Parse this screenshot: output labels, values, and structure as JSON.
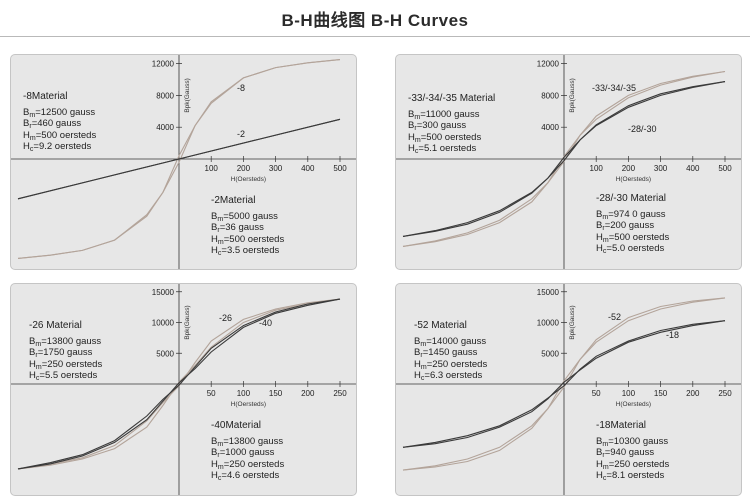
{
  "page": {
    "title": "B-H曲线图 B-H Curves"
  },
  "chart_data": [
    {
      "type": "line",
      "x_label": "H(Oersteds)",
      "y_label": "Bpk(Gauss)",
      "xlim": [
        -500,
        500
      ],
      "ylim": [
        -12500,
        12500
      ],
      "x_ticks": [
        100,
        200,
        300,
        400,
        500
      ],
      "y_ticks": [
        4000,
        8000,
        12000
      ],
      "series": [
        {
          "name": "-8",
          "color": "#b3a49a",
          "points": [
            [
              -500,
              -12500
            ],
            [
              -400,
              -12100
            ],
            [
              -300,
              -11500
            ],
            [
              -200,
              -10200
            ],
            [
              -100,
              -7000
            ],
            [
              -50,
              -4200
            ],
            [
              0,
              -400
            ],
            [
              50,
              4200
            ],
            [
              100,
              7200
            ],
            [
              200,
              10200
            ],
            [
              300,
              11500
            ],
            [
              400,
              12100
            ],
            [
              500,
              12500
            ]
          ]
        },
        {
          "name": "-2",
          "color": "#3a3a3a",
          "points": [
            [
              -500,
              -5000
            ],
            [
              -250,
              -2500
            ],
            [
              0,
              0
            ],
            [
              250,
              2500
            ],
            [
              500,
              5000
            ]
          ]
        }
      ],
      "materials": [
        {
          "title": "-8Material",
          "bm": "12500",
          "br": "460",
          "hm": "500",
          "hc": "9.2"
        },
        {
          "title": "-2Material",
          "bm": "5000",
          "br": "36",
          "hm": "500",
          "hc": "3.5"
        }
      ]
    },
    {
      "type": "line",
      "x_label": "H(Oersteds)",
      "y_label": "Bpk(Gauss)",
      "xlim": [
        -500,
        500
      ],
      "ylim": [
        -12500,
        12500
      ],
      "x_ticks": [
        100,
        200,
        300,
        400,
        500
      ],
      "y_ticks": [
        4000,
        8000,
        12000
      ],
      "series": [
        {
          "name": "-33/-34/-35",
          "color": "#b3a49a",
          "points": [
            [
              -500,
              -11000
            ],
            [
              -400,
              -10300
            ],
            [
              -300,
              -9300
            ],
            [
              -200,
              -7700
            ],
            [
              -100,
              -5000
            ],
            [
              -50,
              -3000
            ],
            [
              0,
              -300
            ],
            [
              50,
              3000
            ],
            [
              100,
              5400
            ],
            [
              200,
              8000
            ],
            [
              300,
              9500
            ],
            [
              400,
              10400
            ],
            [
              500,
              11000
            ]
          ]
        },
        {
          "name": "-28/-30",
          "color": "#3a3a3a",
          "points": [
            [
              -500,
              -9740
            ],
            [
              -400,
              -9000
            ],
            [
              -300,
              -8000
            ],
            [
              -200,
              -6500
            ],
            [
              -100,
              -4200
            ],
            [
              -50,
              -2400
            ],
            [
              0,
              -200
            ],
            [
              50,
              2400
            ],
            [
              100,
              4300
            ],
            [
              200,
              6700
            ],
            [
              300,
              8200
            ],
            [
              400,
              9100
            ],
            [
              500,
              9740
            ]
          ]
        }
      ],
      "materials": [
        {
          "title": "-33/-34/-35 Material",
          "bm": "11000",
          "br": "300",
          "hm": "500",
          "hc": "5.1"
        },
        {
          "title": "-28/-30 Material",
          "bm": "974 0",
          "br": "200",
          "hm": "500",
          "hc": "5.0"
        }
      ]
    },
    {
      "type": "line",
      "x_label": "H(Oersteds)",
      "y_label": "Bpk(Gauss)",
      "xlim": [
        -250,
        250
      ],
      "ylim": [
        -15000,
        15000
      ],
      "x_ticks": [
        50,
        100,
        150,
        200,
        250
      ],
      "y_ticks": [
        5000,
        10000,
        15000
      ],
      "series": [
        {
          "name": "-26",
          "color": "#b3a49a",
          "points": [
            [
              -250,
              -13800
            ],
            [
              -200,
              -13000
            ],
            [
              -150,
              -12000
            ],
            [
              -100,
              -10000
            ],
            [
              -50,
              -6000
            ],
            [
              -25,
              -3000
            ],
            [
              0,
              -300
            ],
            [
              25,
              3500
            ],
            [
              50,
              7000
            ],
            [
              100,
              10500
            ],
            [
              150,
              12200
            ],
            [
              200,
              13200
            ],
            [
              250,
              13800
            ]
          ]
        },
        {
          "name": "-40",
          "color": "#3a3a3a",
          "points": [
            [
              -250,
              -13800
            ],
            [
              -200,
              -12800
            ],
            [
              -150,
              -11500
            ],
            [
              -100,
              -9200
            ],
            [
              -50,
              -5200
            ],
            [
              -25,
              -2500
            ],
            [
              0,
              -200
            ],
            [
              25,
              2800
            ],
            [
              50,
              5800
            ],
            [
              100,
              9500
            ],
            [
              150,
              11700
            ],
            [
              200,
              13000
            ],
            [
              250,
              13800
            ]
          ]
        }
      ],
      "materials": [
        {
          "title": "-26 Material",
          "bm": "13800",
          "br": "1750",
          "hm": "250",
          "hc": "5.5"
        },
        {
          "title": "-40Material",
          "bm": "13800",
          "br": "1000",
          "hm": "250",
          "hc": "4.6"
        }
      ]
    },
    {
      "type": "line",
      "x_label": "H(Oersteds)",
      "y_label": "Bpk(Gauss)",
      "xlim": [
        -250,
        250
      ],
      "ylim": [
        -15000,
        15000
      ],
      "x_ticks": [
        50,
        100,
        150,
        200,
        250
      ],
      "y_ticks": [
        5000,
        10000,
        15000
      ],
      "series": [
        {
          "name": "-52",
          "color": "#b3a49a",
          "points": [
            [
              -250,
              -14000
            ],
            [
              -200,
              -13300
            ],
            [
              -150,
              -12200
            ],
            [
              -100,
              -10300
            ],
            [
              -50,
              -6800
            ],
            [
              -25,
              -4000
            ],
            [
              0,
              -500
            ],
            [
              25,
              4000
            ],
            [
              50,
              7200
            ],
            [
              100,
              10800
            ],
            [
              150,
              12600
            ],
            [
              200,
              13500
            ],
            [
              250,
              14000
            ]
          ]
        },
        {
          "name": "-18",
          "color": "#3a3a3a",
          "points": [
            [
              -250,
              -10300
            ],
            [
              -200,
              -9500
            ],
            [
              -150,
              -8400
            ],
            [
              -100,
              -6800
            ],
            [
              -50,
              -4200
            ],
            [
              -25,
              -2300
            ],
            [
              0,
              -300
            ],
            [
              25,
              2400
            ],
            [
              50,
              4500
            ],
            [
              100,
              7000
            ],
            [
              150,
              8700
            ],
            [
              200,
              9700
            ],
            [
              250,
              10300
            ]
          ]
        }
      ],
      "materials": [
        {
          "title": "-52 Material",
          "bm": "14000",
          "br": "1450",
          "hm": "250",
          "hc": "6.3"
        },
        {
          "title": "-18Material",
          "bm": "10300",
          "br": "940",
          "hm": "250",
          "hc": "8.1"
        }
      ]
    }
  ],
  "units": {
    "field": "gauss",
    "force": "oersteds"
  }
}
